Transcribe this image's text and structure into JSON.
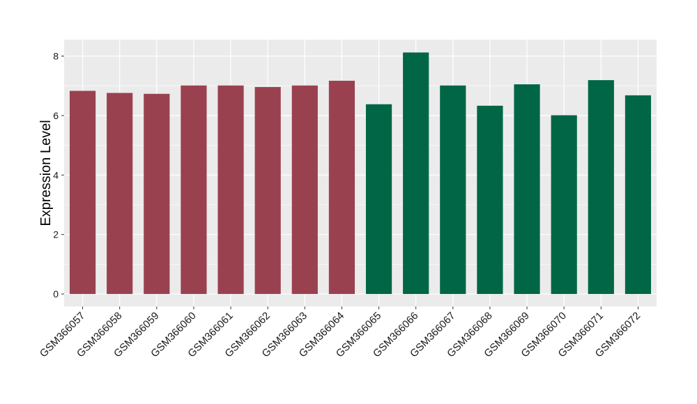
{
  "chart_data": {
    "type": "bar",
    "title": "",
    "xlabel": "",
    "ylabel": "Expression Level",
    "ylim": [
      -0.42,
      8.55
    ],
    "yticks": [
      0,
      2,
      4,
      6,
      8
    ],
    "grid": true,
    "categories": [
      "GSM366057",
      "GSM366058",
      "GSM366059",
      "GSM366060",
      "GSM366061",
      "GSM366062",
      "GSM366063",
      "GSM366064",
      "GSM366065",
      "GSM366066",
      "GSM366067",
      "GSM366068",
      "GSM366069",
      "GSM366070",
      "GSM366071",
      "GSM366072"
    ],
    "values": [
      6.83,
      6.76,
      6.73,
      7.01,
      7.01,
      6.96,
      7.01,
      7.17,
      6.38,
      8.12,
      7.01,
      6.33,
      7.05,
      6.01,
      7.19,
      6.68
    ],
    "group_colors": [
      "#9a4150",
      "#9a4150",
      "#9a4150",
      "#9a4150",
      "#9a4150",
      "#9a4150",
      "#9a4150",
      "#9a4150",
      "#006646",
      "#006646",
      "#006646",
      "#006646",
      "#006646",
      "#006646",
      "#006646",
      "#006646"
    ],
    "panel_background": "#ebebeb",
    "gridline_color": "#ffffff"
  }
}
